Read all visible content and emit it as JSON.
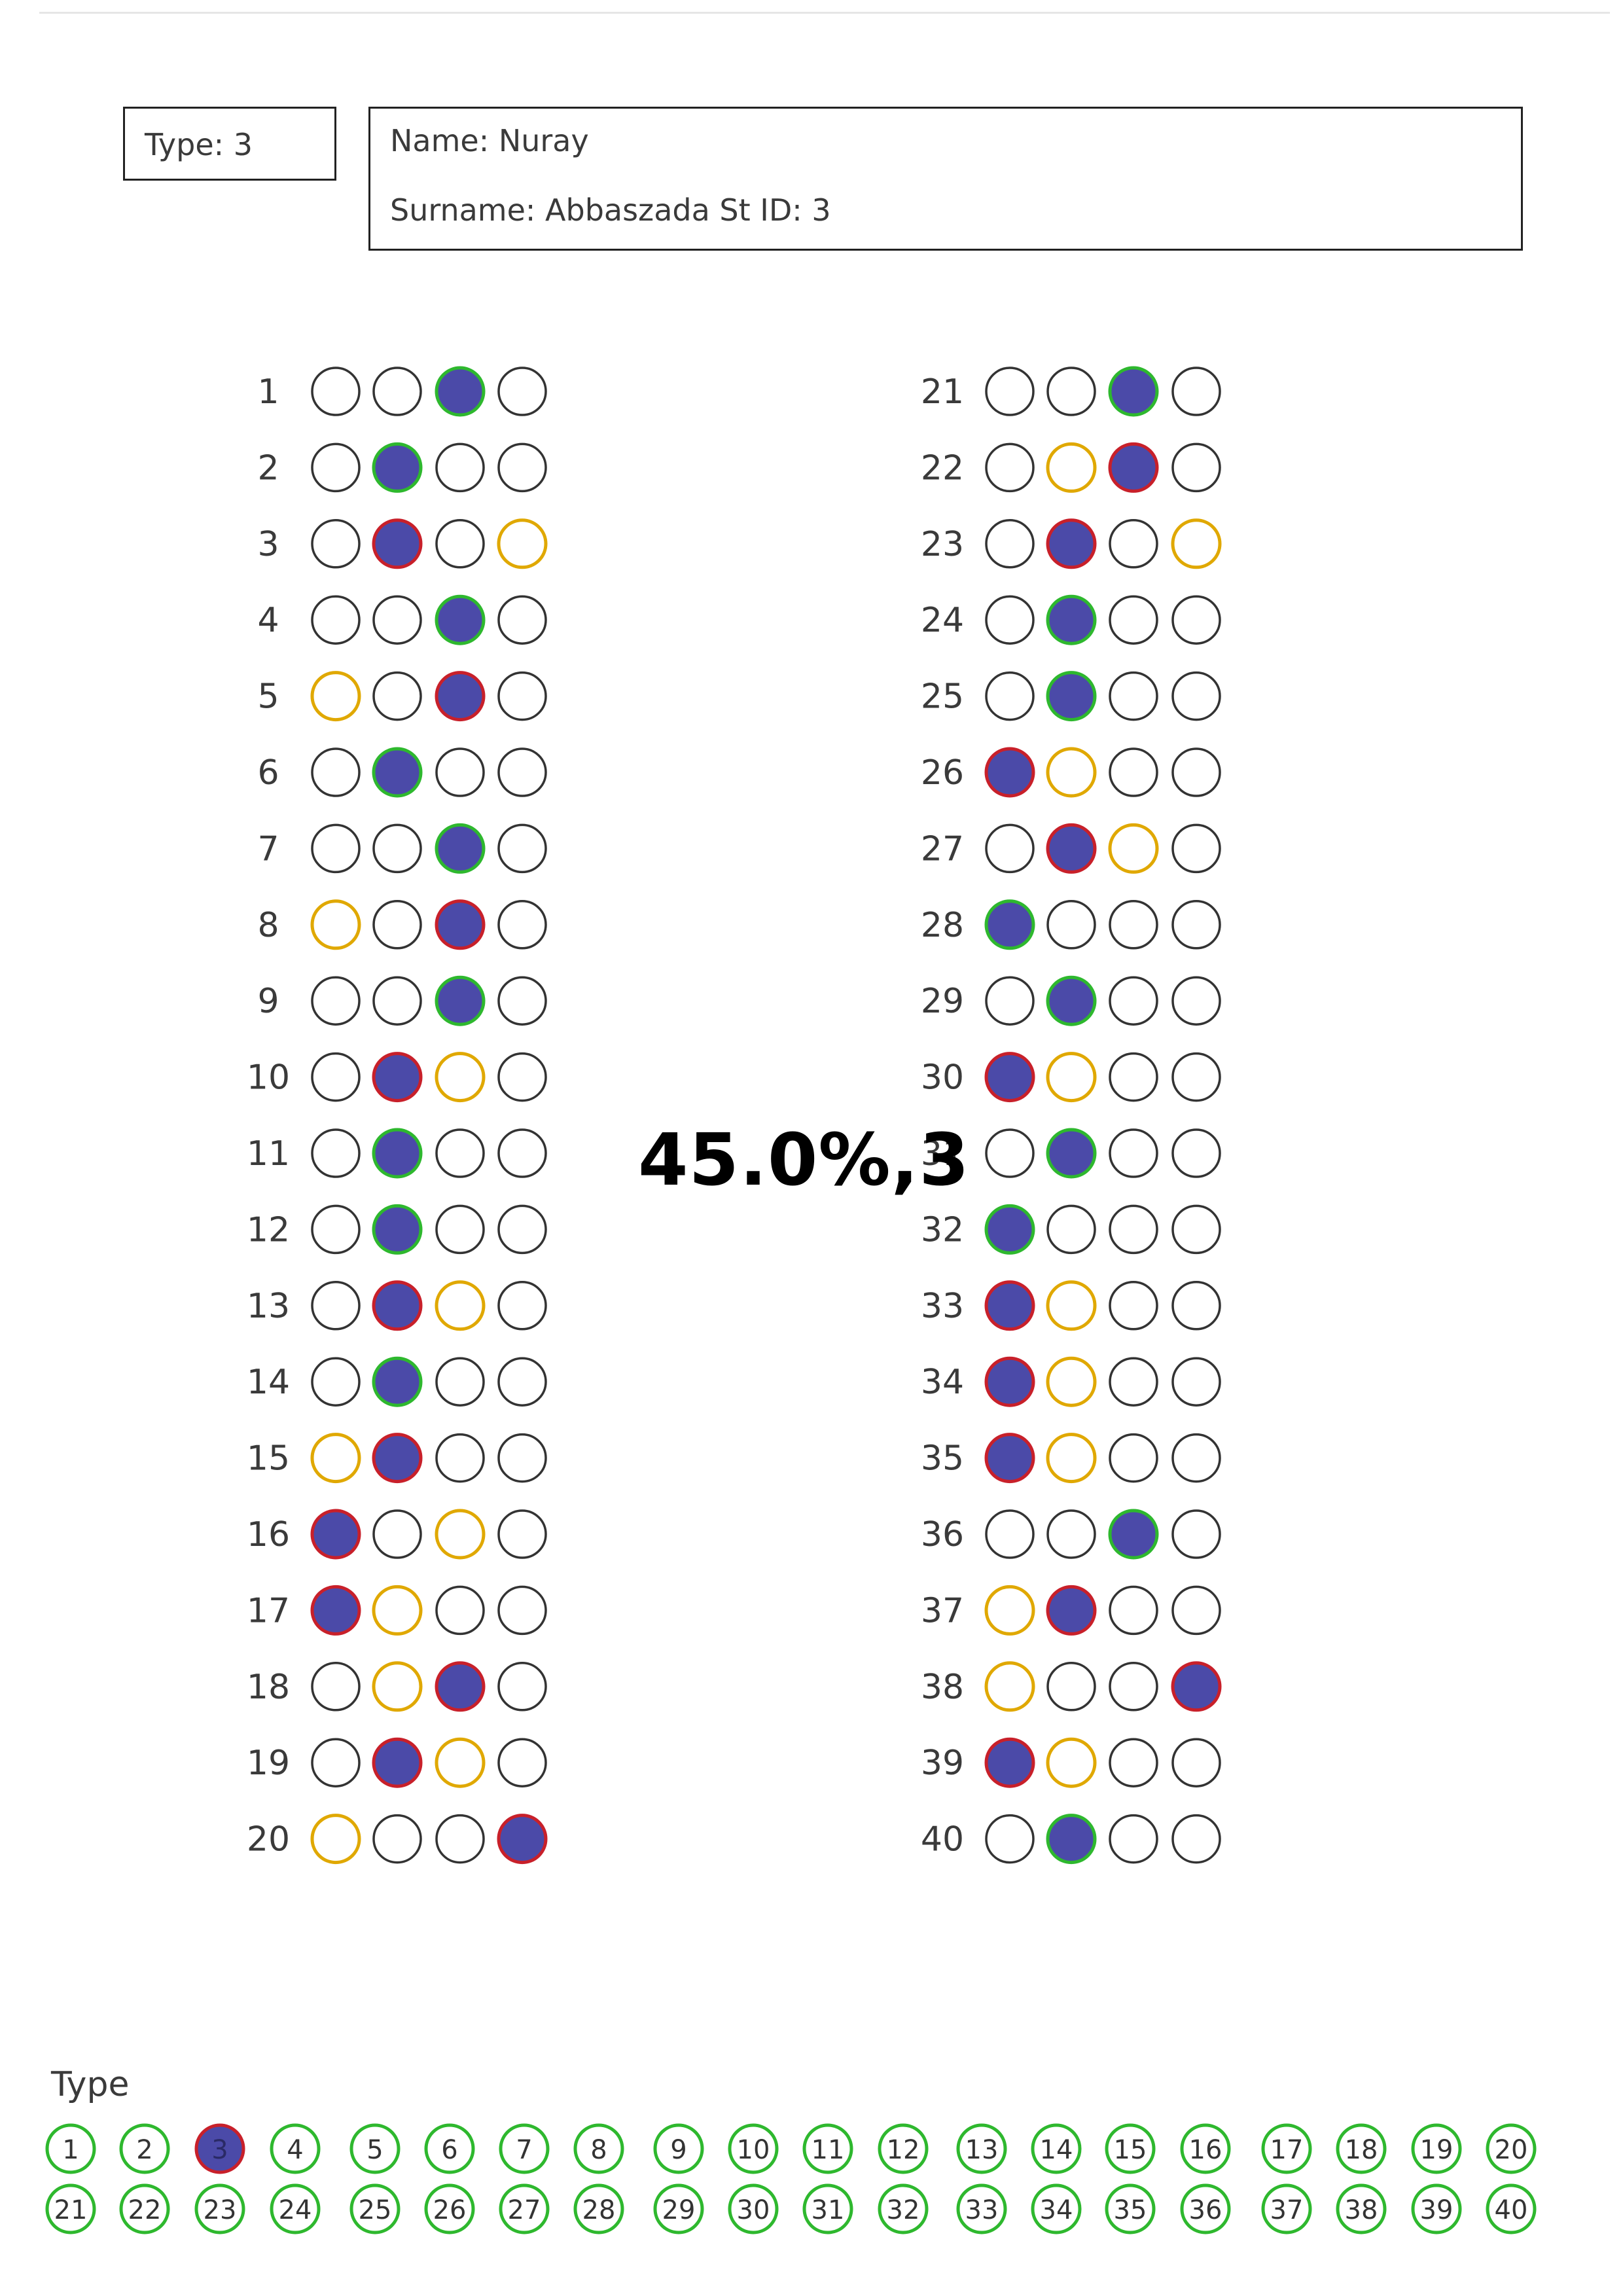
{
  "header": {
    "type_text": "Type:   3",
    "name_text": "Name: Nuray",
    "surname_text": "Surname: Abbaszada  St ID: 3"
  },
  "score_text": "45.0%,3",
  "type_section_label": "Type",
  "colors": {
    "fill": "#4b4aa8",
    "correct": "#2eb82e",
    "wrong": "#c8202a",
    "expected": "#e0a800",
    "empty": "#333333"
  },
  "answers": [
    {
      "q": 1,
      "marked": 3,
      "status": "correct"
    },
    {
      "q": 2,
      "marked": 2,
      "status": "correct"
    },
    {
      "q": 3,
      "marked": 2,
      "status": "wrong",
      "correct": 4
    },
    {
      "q": 4,
      "marked": 3,
      "status": "correct"
    },
    {
      "q": 5,
      "marked": 3,
      "status": "wrong",
      "correct": 1
    },
    {
      "q": 6,
      "marked": 2,
      "status": "correct"
    },
    {
      "q": 7,
      "marked": 3,
      "status": "correct"
    },
    {
      "q": 8,
      "marked": 3,
      "status": "wrong",
      "correct": 1
    },
    {
      "q": 9,
      "marked": 3,
      "status": "correct"
    },
    {
      "q": 10,
      "marked": 2,
      "status": "wrong",
      "correct": 3
    },
    {
      "q": 11,
      "marked": 2,
      "status": "correct"
    },
    {
      "q": 12,
      "marked": 2,
      "status": "correct"
    },
    {
      "q": 13,
      "marked": 2,
      "status": "wrong",
      "correct": 3
    },
    {
      "q": 14,
      "marked": 2,
      "status": "correct"
    },
    {
      "q": 15,
      "marked": 2,
      "status": "wrong",
      "correct": 1
    },
    {
      "q": 16,
      "marked": 1,
      "status": "wrong",
      "correct": 3
    },
    {
      "q": 17,
      "marked": 1,
      "status": "wrong",
      "correct": 2
    },
    {
      "q": 18,
      "marked": 3,
      "status": "wrong",
      "correct": 2
    },
    {
      "q": 19,
      "marked": 2,
      "status": "wrong",
      "correct": 3
    },
    {
      "q": 20,
      "marked": 4,
      "status": "wrong",
      "correct": 1
    },
    {
      "q": 21,
      "marked": 3,
      "status": "correct"
    },
    {
      "q": 22,
      "marked": 3,
      "status": "wrong",
      "correct": 2
    },
    {
      "q": 23,
      "marked": 2,
      "status": "wrong",
      "correct": 4
    },
    {
      "q": 24,
      "marked": 2,
      "status": "correct"
    },
    {
      "q": 25,
      "marked": 2,
      "status": "correct"
    },
    {
      "q": 26,
      "marked": 1,
      "status": "wrong",
      "correct": 2
    },
    {
      "q": 27,
      "marked": 2,
      "status": "wrong",
      "correct": 3
    },
    {
      "q": 28,
      "marked": 1,
      "status": "correct"
    },
    {
      "q": 29,
      "marked": 2,
      "status": "correct"
    },
    {
      "q": 30,
      "marked": 1,
      "status": "wrong",
      "correct": 2
    },
    {
      "q": 31,
      "marked": 2,
      "status": "correct"
    },
    {
      "q": 32,
      "marked": 1,
      "status": "correct"
    },
    {
      "q": 33,
      "marked": 1,
      "status": "wrong",
      "correct": 2
    },
    {
      "q": 34,
      "marked": 1,
      "status": "wrong",
      "correct": 2
    },
    {
      "q": 35,
      "marked": 1,
      "status": "wrong",
      "correct": 2
    },
    {
      "q": 36,
      "marked": 3,
      "status": "correct"
    },
    {
      "q": 37,
      "marked": 2,
      "status": "wrong",
      "correct": 1
    },
    {
      "q": 38,
      "marked": 4,
      "status": "wrong",
      "correct": 1
    },
    {
      "q": 39,
      "marked": 1,
      "status": "wrong",
      "correct": 2
    },
    {
      "q": 40,
      "marked": 2,
      "status": "correct"
    }
  ],
  "type_options": [
    "1",
    "2",
    "3",
    "4",
    "5",
    "6",
    "7",
    "8",
    "9",
    "10",
    "11",
    "12",
    "13",
    "14",
    "15",
    "16",
    "17",
    "18",
    "19",
    "20",
    "21",
    "22",
    "23",
    "24",
    "25",
    "26",
    "27",
    "28",
    "29",
    "30",
    "31",
    "32",
    "33",
    "34",
    "35",
    "36",
    "37",
    "38",
    "39",
    "40"
  ],
  "type_selected": "3"
}
